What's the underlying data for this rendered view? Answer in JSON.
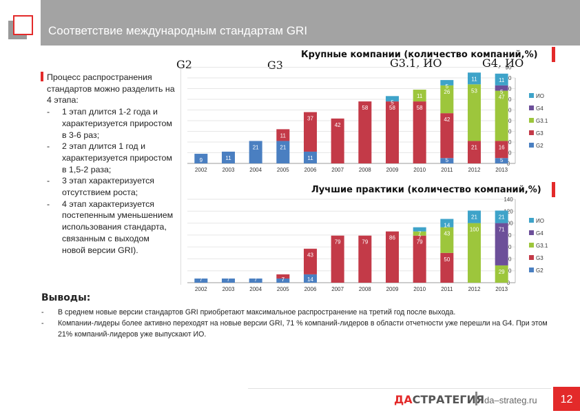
{
  "header": {
    "title": "Соответствие международным стандартам GRI"
  },
  "left_panel": {
    "intro": "Процесс распространения стандартов можно разделить на 4 этапа:",
    "items": [
      "1 этап длится 1-2 года и характеризуется приростом в 3-6 раз;",
      "2 этап длится 1 год и характеризуется приростом в 1,5-2 раза;",
      "3 этап характеризуется отсутствием роста;",
      "4 этап характеризуется постепенным уменьшением использования стандарта, связанным с выходом новой версии GRI)."
    ]
  },
  "version_labels": [
    "G2",
    "G3",
    "G3.1, ИО",
    "G4, ИО"
  ],
  "chart_data": [
    {
      "type": "bar",
      "stacked": true,
      "title": "Крупные компании (количество компаний,%)",
      "categories": [
        "2002",
        "2003",
        "2004",
        "2005",
        "2006",
        "2007",
        "2008",
        "2009",
        "2010",
        "2011",
        "2012",
        "2013"
      ],
      "series": [
        {
          "name": "G2",
          "color": "#4a7fc1",
          "values": [
            9,
            11,
            21,
            21,
            11,
            0,
            0,
            0,
            0,
            5,
            0,
            5
          ]
        },
        {
          "name": "G3",
          "color": "#c33a48",
          "values": [
            0,
            0,
            0,
            11,
            37,
            42,
            58,
            58,
            58,
            42,
            21,
            16
          ]
        },
        {
          "name": "G3.1",
          "color": "#9dc63c",
          "values": [
            0,
            0,
            0,
            0,
            0,
            0,
            0,
            0,
            11,
            26,
            53,
            47
          ]
        },
        {
          "name": "G4",
          "color": "#6c4f99",
          "values": [
            0,
            0,
            0,
            0,
            0,
            0,
            0,
            0,
            0,
            0,
            0,
            5
          ]
        },
        {
          "name": "ИО",
          "color": "#3ea3c9",
          "values": [
            0,
            0,
            0,
            0,
            0,
            0,
            0,
            5,
            0,
            5,
            11,
            11
          ]
        }
      ],
      "ylim": [
        0,
        80
      ],
      "yticks": [
        0,
        10,
        20,
        30,
        40,
        50,
        60,
        70,
        80,
        90
      ],
      "legend": "right"
    },
    {
      "type": "bar",
      "stacked": true,
      "title": "Лучшие практики (количество компаний,%)",
      "categories": [
        "2002",
        "2003",
        "2004",
        "2005",
        "2006",
        "2007",
        "2008",
        "2009",
        "2010",
        "2011",
        "2012",
        "2013"
      ],
      "series": [
        {
          "name": "G2",
          "color": "#4a7fc1",
          "values": [
            7,
            7,
            7,
            7,
            14,
            0,
            0,
            0,
            0,
            0,
            0,
            0
          ]
        },
        {
          "name": "G3",
          "color": "#c33a48",
          "values": [
            0,
            0,
            0,
            7,
            43,
            79,
            79,
            86,
            79,
            50,
            0,
            0
          ]
        },
        {
          "name": "G3.1",
          "color": "#9dc63c",
          "values": [
            0,
            0,
            0,
            0,
            0,
            0,
            0,
            0,
            7,
            43,
            100,
            29
          ]
        },
        {
          "name": "G4",
          "color": "#6c4f99",
          "values": [
            0,
            0,
            0,
            0,
            0,
            0,
            0,
            0,
            0,
            0,
            0,
            71
          ]
        },
        {
          "name": "ИО",
          "color": "#3ea3c9",
          "values": [
            0,
            0,
            0,
            0,
            0,
            0,
            0,
            0,
            7,
            14,
            21,
            21
          ]
        }
      ],
      "ylim": [
        0,
        140
      ],
      "yticks": [
        0,
        20,
        40,
        60,
        80,
        100,
        120,
        140
      ],
      "legend": "right"
    }
  ],
  "conclusions": {
    "title": "Выводы:",
    "items": [
      "В среднем новые версии стандартов GRI приобретают максимальное распространение на третий год после выхода.",
      "Компании-лидеры более активно переходят на новые версии GRI, 71 % компаний-лидеров в области отчетности уже перешли на G4. При этом 21% компаний-лидеров уже выпускают ИО."
    ]
  },
  "footer": {
    "brand_da": "ДА",
    "brand_rest": "СТРАТЕГИЯ",
    "site": "da–strateg.ru",
    "page": "12"
  },
  "colors": {
    "accent": "#e32a2a",
    "header_bg": "#a3a3a3"
  }
}
